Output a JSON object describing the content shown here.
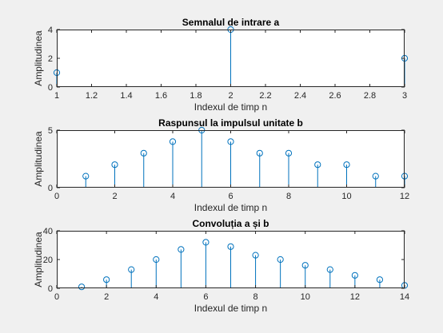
{
  "colors": {
    "figure_background": "#f0f0f0",
    "axes_background": "#ffffff",
    "stem": "#0072bd",
    "axis": "#262626"
  },
  "chart_data": [
    {
      "type": "stem",
      "title": "Semnalul de intrare a",
      "xlabel": "Indexul de timp n",
      "ylabel": "Amplitudinea",
      "xlim": [
        1,
        3
      ],
      "ylim": [
        0,
        4
      ],
      "xticks": [
        1,
        1.2,
        1.4,
        1.6,
        1.8,
        2,
        2.2,
        2.4,
        2.6,
        2.8,
        3
      ],
      "xtick_labels": [
        "1",
        "1.2",
        "1.4",
        "1.6",
        "1.8",
        "2",
        "2.2",
        "2.4",
        "2.6",
        "2.8",
        "3"
      ],
      "yticks": [
        0,
        2,
        4
      ],
      "ytick_labels": [
        "0",
        "2",
        "4"
      ],
      "x": [
        1,
        2,
        3
      ],
      "y": [
        1,
        4,
        2
      ],
      "grid": false
    },
    {
      "type": "stem",
      "title": "Raspunsul la impulsul unitate b",
      "xlabel": "Indexul de timp n",
      "ylabel": "Amplitudinea",
      "xlim": [
        0,
        12
      ],
      "ylim": [
        0,
        5
      ],
      "xticks": [
        0,
        2,
        4,
        6,
        8,
        10,
        12
      ],
      "xtick_labels": [
        "0",
        "2",
        "4",
        "6",
        "8",
        "10",
        "12"
      ],
      "yticks": [
        0,
        5
      ],
      "ytick_labels": [
        "0",
        "5"
      ],
      "x": [
        1,
        2,
        3,
        4,
        5,
        6,
        7,
        8,
        9,
        10,
        11,
        12
      ],
      "y": [
        1,
        2,
        3,
        4,
        5,
        4,
        3,
        3,
        2,
        2,
        1,
        1
      ],
      "grid": false
    },
    {
      "type": "stem",
      "title": "Convoluția a și b",
      "xlabel": "Indexul de timp n",
      "ylabel": "Amplitudinea",
      "xlim": [
        0,
        14
      ],
      "ylim": [
        0,
        40
      ],
      "xticks": [
        0,
        2,
        4,
        6,
        8,
        10,
        12,
        14
      ],
      "xtick_labels": [
        "0",
        "2",
        "4",
        "6",
        "8",
        "10",
        "12",
        "14"
      ],
      "yticks": [
        0,
        20,
        40
      ],
      "ytick_labels": [
        "0",
        "20",
        "40"
      ],
      "x": [
        1,
        2,
        3,
        4,
        5,
        6,
        7,
        8,
        9,
        10,
        11,
        12,
        13,
        14
      ],
      "y": [
        1,
        6,
        13,
        20,
        27,
        32,
        29,
        23,
        20,
        16,
        13,
        9,
        6,
        2
      ],
      "grid": false
    }
  ]
}
